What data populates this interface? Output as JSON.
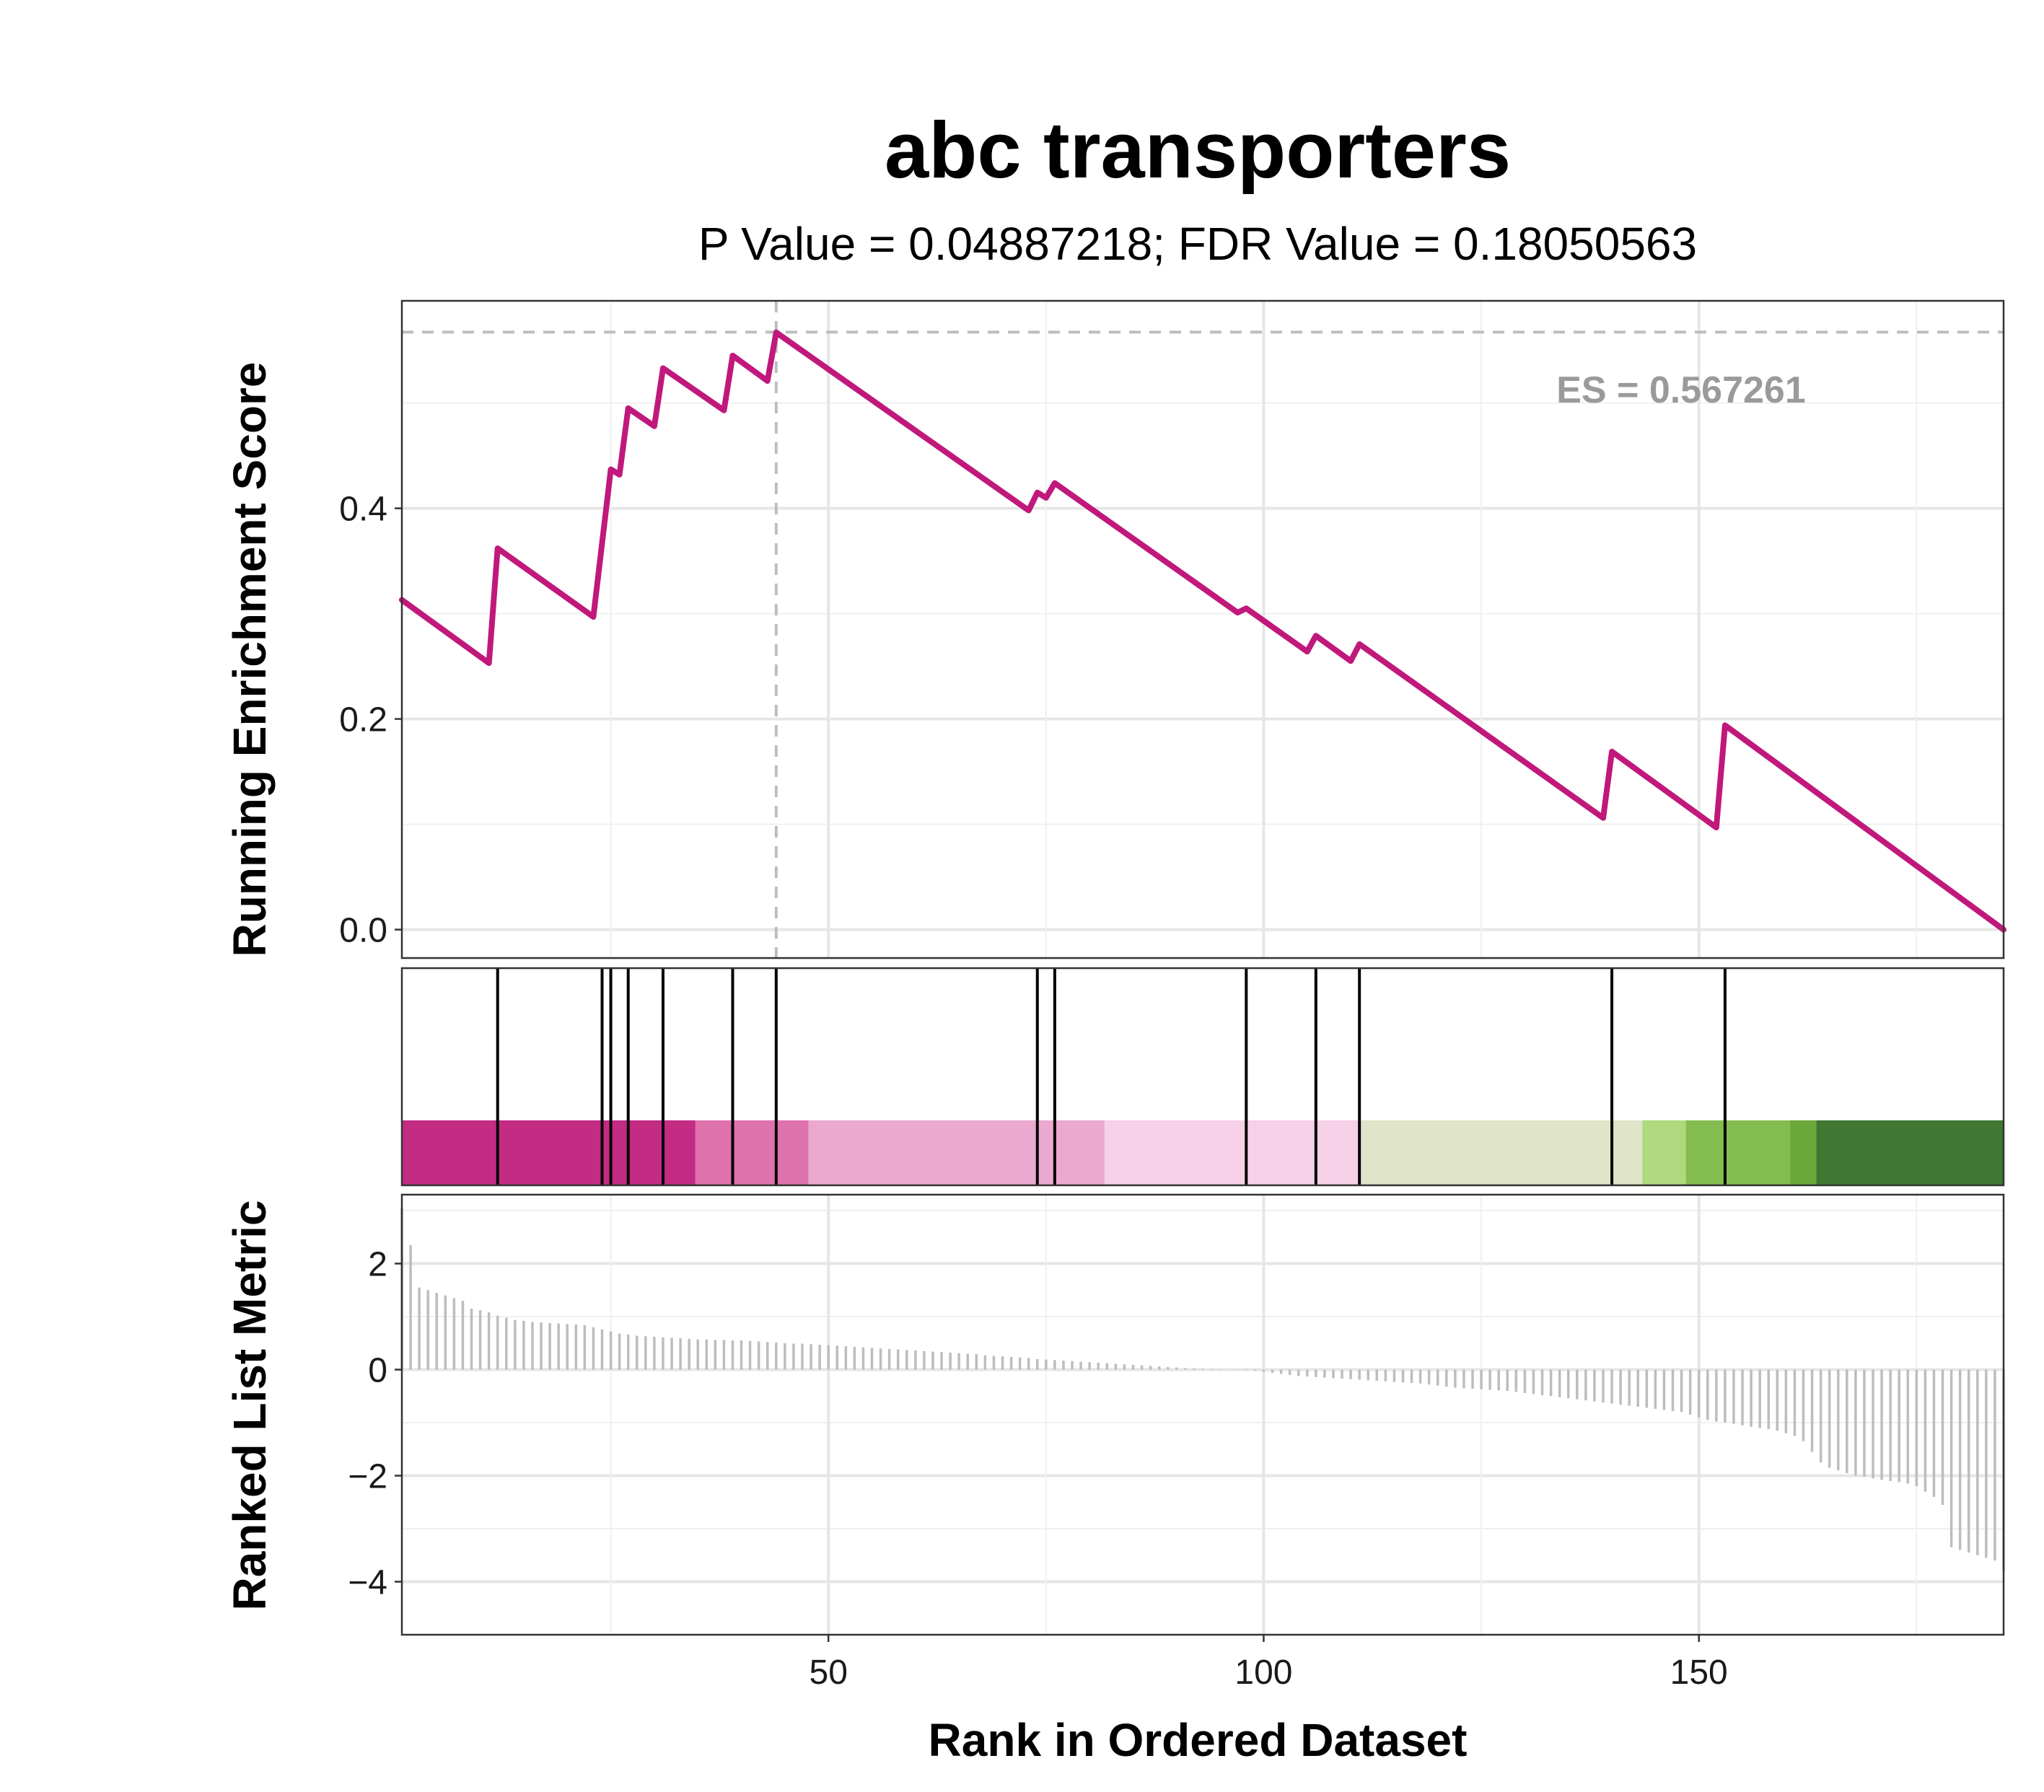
{
  "title": "abc transporters",
  "subtitle": "P Value = 0.04887218; FDR Value = 0.18050563",
  "es_label": "ES = 0.567261",
  "colors": {
    "curve": "#C0187B",
    "hits": "#000000",
    "metric_bars": "#BDBDBD",
    "guides": "#BDBDBD",
    "es_text": "#9A9A9A",
    "heat_bands": [
      "#C42C84",
      "#DE72AD",
      "#EBA9CF",
      "#F6D0E7",
      "#E0E4C8",
      "#AED97E",
      "#84BD4F",
      "#6BA83A",
      "#3F7733"
    ]
  },
  "chart_data": [
    {
      "type": "line",
      "panel": "running-enrichment",
      "ylabel": "Running Enrichment Score",
      "xlim": [
        1,
        185
      ],
      "ylim": [
        -0.027,
        0.597
      ],
      "yticks": [
        0.0,
        0.2,
        0.4
      ],
      "ytick_labels": [
        "0.0",
        "0.2",
        "0.4"
      ],
      "grid": true,
      "es_max": 0.567261,
      "es_rank": 44,
      "points": [
        [
          1,
          0.313
        ],
        [
          11,
          0.253
        ],
        [
          12,
          0.362
        ],
        [
          23,
          0.297
        ],
        [
          25,
          0.437
        ],
        [
          26,
          0.432
        ],
        [
          27,
          0.495
        ],
        [
          30,
          0.478
        ],
        [
          31,
          0.533
        ],
        [
          38,
          0.493
        ],
        [
          39,
          0.545
        ],
        [
          43,
          0.521
        ],
        [
          44,
          0.567
        ],
        [
          73,
          0.398
        ],
        [
          74,
          0.415
        ],
        [
          75,
          0.41
        ],
        [
          76,
          0.424
        ],
        [
          97,
          0.301
        ],
        [
          98,
          0.305
        ],
        [
          105,
          0.264
        ],
        [
          106,
          0.279
        ],
        [
          110,
          0.255
        ],
        [
          111,
          0.271
        ],
        [
          139,
          0.106
        ],
        [
          140,
          0.169
        ],
        [
          152,
          0.097
        ],
        [
          153,
          0.194
        ],
        [
          185,
          0.0
        ]
      ]
    },
    {
      "type": "heatmap",
      "panel": "hit-positions",
      "hits": [
        12,
        24,
        25,
        27,
        31,
        39,
        44,
        74,
        76,
        98,
        106,
        111,
        140,
        153
      ],
      "heat_bands": [
        {
          "from": 1,
          "to": 34.7
        },
        {
          "from": 34.7,
          "to": 47.7
        },
        {
          "from": 47.7,
          "to": 81.7
        },
        {
          "from": 81.7,
          "to": 111.2
        },
        {
          "from": 111.2,
          "to": 143.5
        },
        {
          "from": 143.5,
          "to": 148.5
        },
        {
          "from": 148.5,
          "to": 160.5
        },
        {
          "from": 160.5,
          "to": 163.5
        },
        {
          "from": 163.5,
          "to": 185
        }
      ]
    },
    {
      "type": "bar",
      "panel": "ranked-list-metric",
      "ylabel": "Ranked List Metric",
      "xlabel": "Rank in Ordered Dataset",
      "xlim": [
        1,
        185
      ],
      "ylim": [
        -5,
        3.3
      ],
      "yticks": [
        -4,
        -2,
        0,
        2
      ],
      "ytick_labels": [
        "−4",
        "−2",
        "0",
        "2"
      ],
      "xticks": [
        50,
        100,
        150
      ],
      "xtick_labels": [
        "50",
        "100",
        "150"
      ],
      "grid": true,
      "values": [
        3.05,
        2.35,
        1.55,
        1.5,
        1.45,
        1.4,
        1.35,
        1.3,
        1.15,
        1.12,
        1.08,
        1.02,
        0.98,
        0.94,
        0.92,
        0.9,
        0.89,
        0.88,
        0.87,
        0.86,
        0.85,
        0.84,
        0.8,
        0.76,
        0.72,
        0.68,
        0.66,
        0.64,
        0.63,
        0.62,
        0.61,
        0.6,
        0.59,
        0.58,
        0.57,
        0.57,
        0.56,
        0.56,
        0.55,
        0.55,
        0.54,
        0.53,
        0.52,
        0.51,
        0.5,
        0.49,
        0.49,
        0.48,
        0.47,
        0.46,
        0.45,
        0.44,
        0.43,
        0.42,
        0.41,
        0.4,
        0.39,
        0.38,
        0.37,
        0.36,
        0.35,
        0.34,
        0.33,
        0.32,
        0.31,
        0.3,
        0.29,
        0.27,
        0.26,
        0.25,
        0.24,
        0.23,
        0.22,
        0.2,
        0.19,
        0.18,
        0.17,
        0.16,
        0.15,
        0.14,
        0.13,
        0.12,
        0.11,
        0.1,
        0.09,
        0.08,
        0.07,
        0.06,
        0.05,
        0.04,
        0.03,
        0.02,
        0.015,
        0.01,
        0.005,
        0.0,
        -0.005,
        -0.01,
        -0.02,
        -0.04,
        -0.06,
        -0.08,
        -0.1,
        -0.12,
        -0.13,
        -0.14,
        -0.15,
        -0.16,
        -0.17,
        -0.18,
        -0.19,
        -0.2,
        -0.21,
        -0.22,
        -0.23,
        -0.24,
        -0.25,
        -0.26,
        -0.28,
        -0.3,
        -0.32,
        -0.34,
        -0.35,
        -0.36,
        -0.37,
        -0.38,
        -0.39,
        -0.4,
        -0.42,
        -0.44,
        -0.46,
        -0.48,
        -0.5,
        -0.52,
        -0.54,
        -0.56,
        -0.58,
        -0.6,
        -0.62,
        -0.64,
        -0.66,
        -0.68,
        -0.7,
        -0.72,
        -0.74,
        -0.76,
        -0.78,
        -0.8,
        -0.85,
        -0.9,
        -0.95,
        -0.98,
        -1.0,
        -1.02,
        -1.05,
        -1.08,
        -1.1,
        -1.12,
        -1.15,
        -1.2,
        -1.25,
        -1.35,
        -1.55,
        -1.75,
        -1.85,
        -1.9,
        -1.95,
        -2.0,
        -2.02,
        -2.05,
        -2.08,
        -2.1,
        -2.12,
        -2.15,
        -2.2,
        -2.3,
        -2.4,
        -2.55,
        -3.35,
        -3.4,
        -3.45,
        -3.5,
        -3.55,
        -3.6,
        -3.8
      ]
    }
  ]
}
